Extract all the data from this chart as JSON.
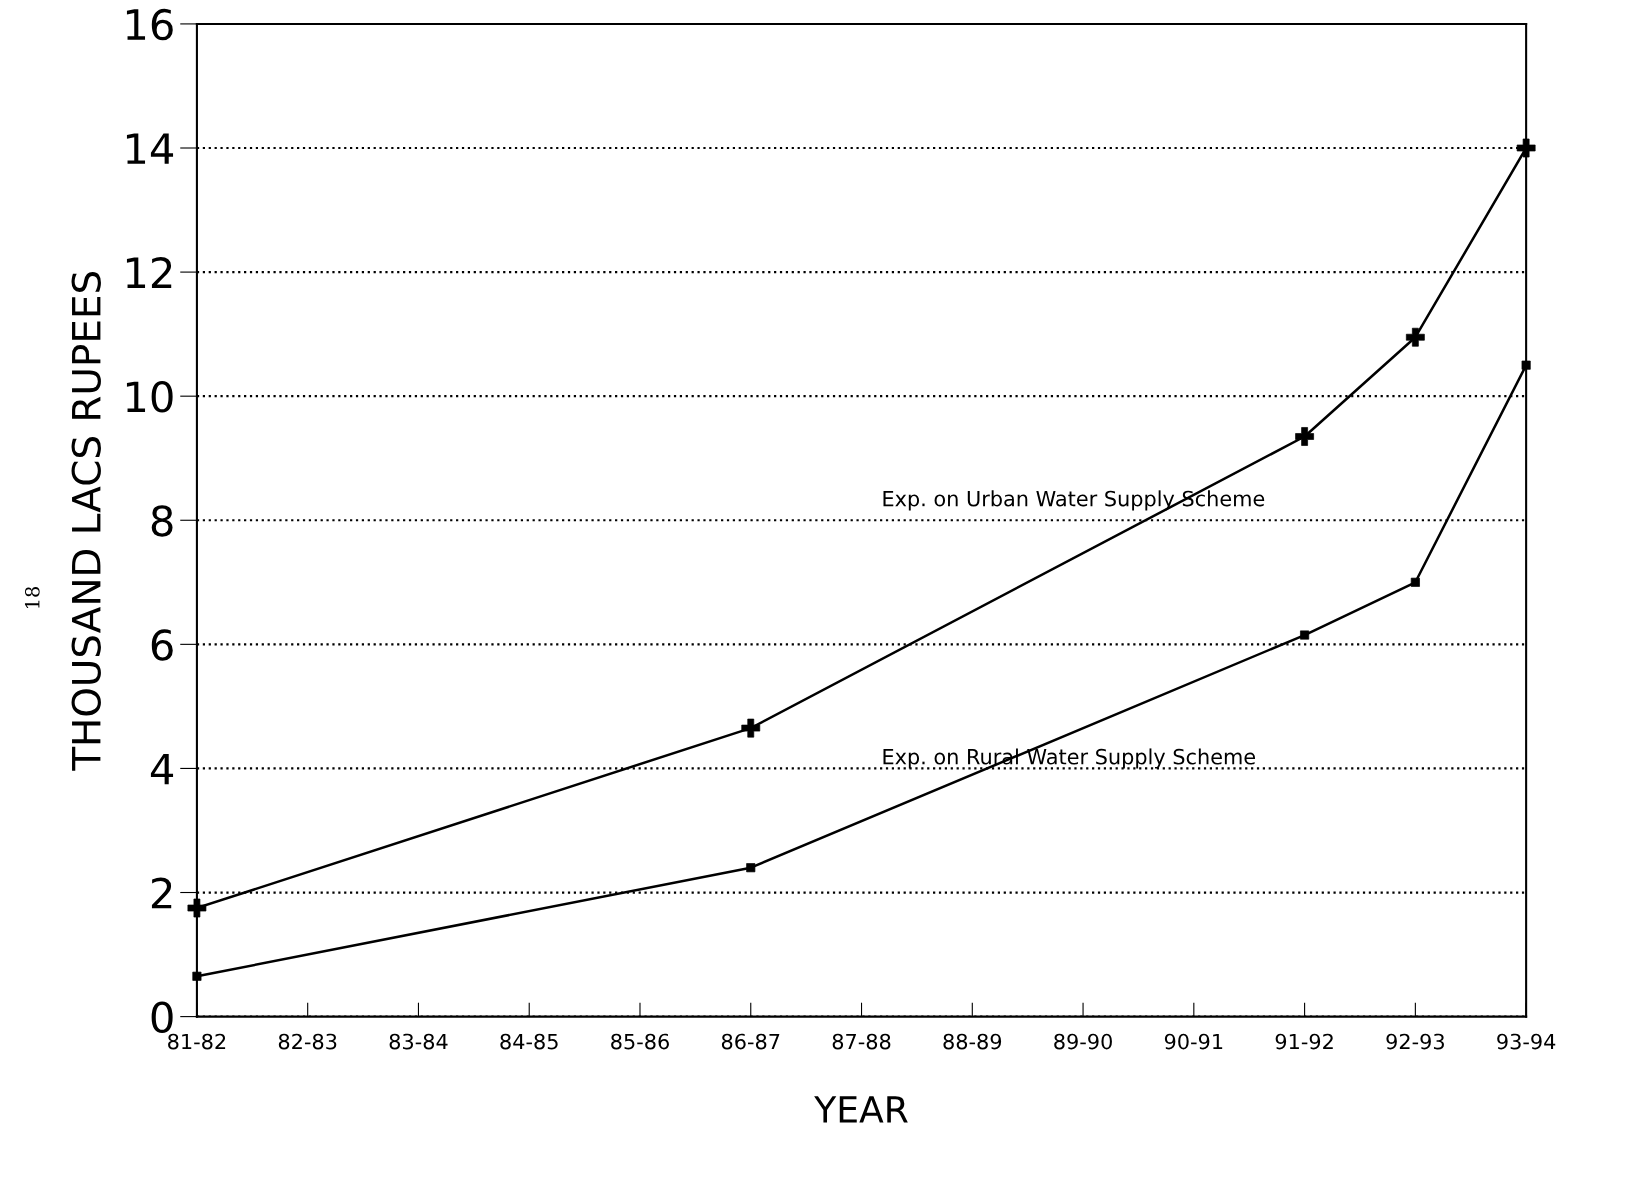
{
  "chart_data": {
    "type": "line",
    "xlabel": "YEAR",
    "ylabel": "THOUSAND LACS RUPEES",
    "categories": [
      "81-82",
      "82-83",
      "83-84",
      "84-85",
      "85-86",
      "86-87",
      "87-88",
      "88-89",
      "89-90",
      "90-91",
      "91-92",
      "92-93",
      "93-94"
    ],
    "series": [
      {
        "name": "Exp. on Urban Water Supply Scheme",
        "color": "#000000",
        "marker": "cross",
        "values": [
          1.75,
          null,
          null,
          null,
          null,
          4.65,
          null,
          null,
          null,
          null,
          9.35,
          10.95,
          14.0
        ]
      },
      {
        "name": "Exp. on Rural Water Supply Scheme",
        "color": "#000000",
        "marker": "square",
        "values": [
          0.65,
          null,
          null,
          null,
          null,
          2.4,
          null,
          null,
          null,
          null,
          6.15,
          7.0,
          10.5
        ]
      }
    ],
    "ylim": [
      0,
      16
    ],
    "yticks": [
      0,
      2,
      4,
      6,
      8,
      10,
      12,
      14,
      16
    ],
    "grid": "y",
    "line_style": "solid",
    "legend": false,
    "annotations": [
      "18"
    ]
  }
}
